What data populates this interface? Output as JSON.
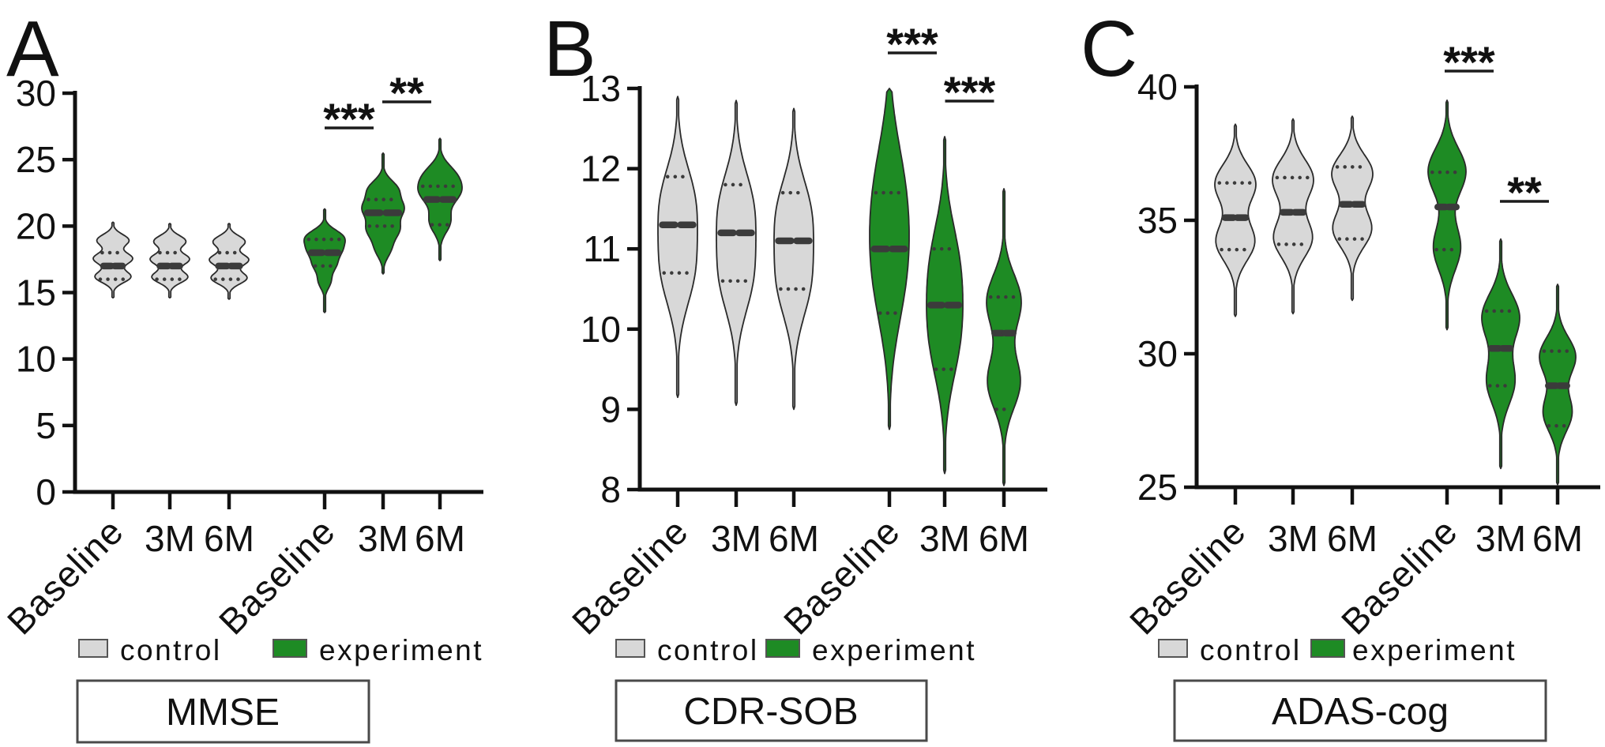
{
  "figure": {
    "background": "#ffffff",
    "colors": {
      "control_fill": "#d8d8d8",
      "experiment_fill": "#1e8b24",
      "outline": "#2a2a2a",
      "marker": "#3b3b3b",
      "axis": "#111111"
    },
    "legend": {
      "control": "control",
      "experiment": "experiment"
    }
  },
  "chart_data": [
    {
      "type": "violin",
      "panel_label": "A",
      "title": "MMSE",
      "ylim": [
        0,
        30
      ],
      "yticks": [
        0,
        5,
        10,
        15,
        20,
        25,
        30
      ],
      "categories": [
        "Baseline",
        "3M",
        "6M",
        "Baseline",
        "3M",
        "6M"
      ],
      "groups": [
        "control",
        "control",
        "control",
        "experiment",
        "experiment",
        "experiment"
      ],
      "violins": [
        {
          "group": "control",
          "category": "Baseline",
          "min": 14.6,
          "q1": 16,
          "median": 17,
          "q3": 18,
          "max": 20.3,
          "hw": 25,
          "s": 0.078,
          "lobes": [
            [
              0.28,
              0.92
            ],
            [
              0.52,
              1.0
            ],
            [
              0.76,
              0.82
            ]
          ]
        },
        {
          "group": "control",
          "category": "3M",
          "min": 14.6,
          "q1": 16,
          "median": 17,
          "q3": 18,
          "max": 20.2,
          "hw": 25,
          "s": 0.078,
          "lobes": [
            [
              0.28,
              0.92
            ],
            [
              0.52,
              1.0
            ],
            [
              0.76,
              0.82
            ]
          ]
        },
        {
          "group": "control",
          "category": "6M",
          "min": 14.5,
          "q1": 16,
          "median": 17,
          "q3": 18,
          "max": 20.2,
          "hw": 25,
          "s": 0.078,
          "lobes": [
            [
              0.28,
              0.92
            ],
            [
              0.52,
              1.0
            ],
            [
              0.76,
              0.82
            ]
          ]
        },
        {
          "group": "experiment",
          "category": "Baseline",
          "min": 13.5,
          "q1": 17,
          "median": 18,
          "q3": 19,
          "max": 21.3,
          "hw": 26,
          "s": 0.07,
          "lobes": [
            [
              0.3,
              0.35
            ],
            [
              0.46,
              0.6
            ],
            [
              0.6,
              0.82
            ],
            [
              0.73,
              1.0
            ]
          ]
        },
        {
          "group": "experiment",
          "category": "3M",
          "min": 16.4,
          "q1": 20,
          "median": 21,
          "q3": 22,
          "max": 25.5,
          "hw": 27,
          "s": 0.075,
          "lobes": [
            [
              0.21,
              0.4
            ],
            [
              0.37,
              0.8
            ],
            [
              0.54,
              1.0
            ],
            [
              0.7,
              0.75
            ]
          ]
        },
        {
          "group": "experiment",
          "category": "6M",
          "min": 17.4,
          "q1": 20.1,
          "median": 22,
          "q3": 23,
          "max": 26.6,
          "hw": 28,
          "s": 0.09,
          "lobes": [
            [
              0.32,
              0.6
            ],
            [
              0.55,
              1.0
            ],
            [
              0.7,
              0.8
            ]
          ]
        }
      ],
      "significance": [
        {
          "between": [
            3,
            4
          ],
          "label": "***"
        },
        {
          "between": [
            4,
            5
          ],
          "label": "**"
        }
      ]
    },
    {
      "type": "violin",
      "panel_label": "B",
      "title": "CDR-SOB",
      "ylim": [
        8,
        13
      ],
      "yticks": [
        8,
        9,
        10,
        11,
        12,
        13
      ],
      "categories": [
        "Baseline",
        "3M",
        "6M",
        "Baseline",
        "3M",
        "6M"
      ],
      "groups": [
        "control",
        "control",
        "control",
        "experiment",
        "experiment",
        "experiment"
      ],
      "violins": [
        {
          "group": "control",
          "category": "Baseline",
          "min": 9.15,
          "q1": 10.7,
          "median": 11.3,
          "q3": 11.9,
          "max": 12.9,
          "hw": 25,
          "s": 0.12,
          "lobes": [
            [
              0.42,
              0.96
            ],
            [
              0.65,
              1.0
            ]
          ]
        },
        {
          "group": "control",
          "category": "3M",
          "min": 9.05,
          "q1": 10.6,
          "median": 11.2,
          "q3": 11.8,
          "max": 12.85,
          "hw": 25,
          "s": 0.12,
          "lobes": [
            [
              0.42,
              0.96
            ],
            [
              0.65,
              1.0
            ]
          ]
        },
        {
          "group": "control",
          "category": "6M",
          "min": 9.0,
          "q1": 10.5,
          "median": 11.1,
          "q3": 11.7,
          "max": 12.75,
          "hw": 25,
          "s": 0.12,
          "lobes": [
            [
              0.42,
              0.96
            ],
            [
              0.65,
              1.0
            ]
          ]
        },
        {
          "group": "experiment",
          "category": "Baseline",
          "min": 8.75,
          "q1": 10.2,
          "median": 11.0,
          "q3": 11.7,
          "max": 13.0,
          "hw": 25,
          "s": 0.16,
          "lobes": [
            [
              0.45,
              1.0
            ],
            [
              0.7,
              0.95
            ]
          ]
        },
        {
          "group": "experiment",
          "category": "3M",
          "min": 8.2,
          "q1": 9.5,
          "median": 10.3,
          "q3": 11.0,
          "max": 12.4,
          "hw": 23,
          "s": 0.13,
          "lobes": [
            [
              0.4,
              1.0
            ],
            [
              0.62,
              0.97
            ]
          ]
        },
        {
          "group": "experiment",
          "category": "6M",
          "min": 8.05,
          "q1": 9.0,
          "median": 9.95,
          "q3": 10.4,
          "max": 11.75,
          "hw": 22,
          "s": 0.09,
          "lobes": [
            [
              0.35,
              0.95
            ],
            [
              0.62,
              1.0
            ]
          ]
        }
      ],
      "significance": [
        {
          "between": [
            3,
            4
          ],
          "label": "***"
        },
        {
          "between": [
            4,
            5
          ],
          "label": "***"
        }
      ]
    },
    {
      "type": "violin",
      "panel_label": "C",
      "title": "ADAS-cog",
      "ylim": [
        25,
        40
      ],
      "yticks": [
        25,
        30,
        35,
        40
      ],
      "categories": [
        "Baseline",
        "3M",
        "6M",
        "Baseline",
        "3M",
        "6M"
      ],
      "groups": [
        "control",
        "control",
        "control",
        "experiment",
        "experiment",
        "experiment"
      ],
      "violins": [
        {
          "group": "control",
          "category": "Baseline",
          "min": 31.4,
          "q1": 33.9,
          "median": 35.1,
          "q3": 36.4,
          "max": 38.6,
          "hw": 26,
          "s": 0.1,
          "lobes": [
            [
              0.39,
              0.95
            ],
            [
              0.69,
              1.0
            ]
          ]
        },
        {
          "group": "control",
          "category": "3M",
          "min": 31.5,
          "q1": 34.1,
          "median": 35.3,
          "q3": 36.6,
          "max": 38.8,
          "hw": 26,
          "s": 0.1,
          "lobes": [
            [
              0.39,
              0.95
            ],
            [
              0.69,
              1.0
            ]
          ]
        },
        {
          "group": "control",
          "category": "6M",
          "min": 32.0,
          "q1": 34.3,
          "median": 35.6,
          "q3": 37.0,
          "max": 38.9,
          "hw": 26,
          "s": 0.1,
          "lobes": [
            [
              0.39,
              0.95
            ],
            [
              0.69,
              1.0
            ]
          ]
        },
        {
          "group": "experiment",
          "category": "Baseline",
          "min": 30.9,
          "q1": 33.9,
          "median": 35.5,
          "q3": 36.8,
          "max": 39.5,
          "hw": 24,
          "s": 0.1,
          "lobes": [
            [
              0.36,
              0.72
            ],
            [
              0.69,
              1.0
            ]
          ]
        },
        {
          "group": "experiment",
          "category": "3M",
          "min": 25.7,
          "q1": 28.8,
          "median": 30.2,
          "q3": 31.6,
          "max": 34.3,
          "hw": 24,
          "s": 0.1,
          "lobes": [
            [
              0.38,
              0.75
            ],
            [
              0.66,
              1.0
            ]
          ]
        },
        {
          "group": "experiment",
          "category": "6M",
          "min": 25.1,
          "q1": 27.3,
          "median": 28.8,
          "q3": 30.1,
          "max": 32.6,
          "hw": 23,
          "s": 0.095,
          "lobes": [
            [
              0.36,
              0.8
            ],
            [
              0.64,
              1.0
            ]
          ]
        }
      ],
      "significance": [
        {
          "between": [
            3,
            4
          ],
          "label": "***"
        },
        {
          "between": [
            4,
            5
          ],
          "label": "**"
        }
      ]
    }
  ]
}
